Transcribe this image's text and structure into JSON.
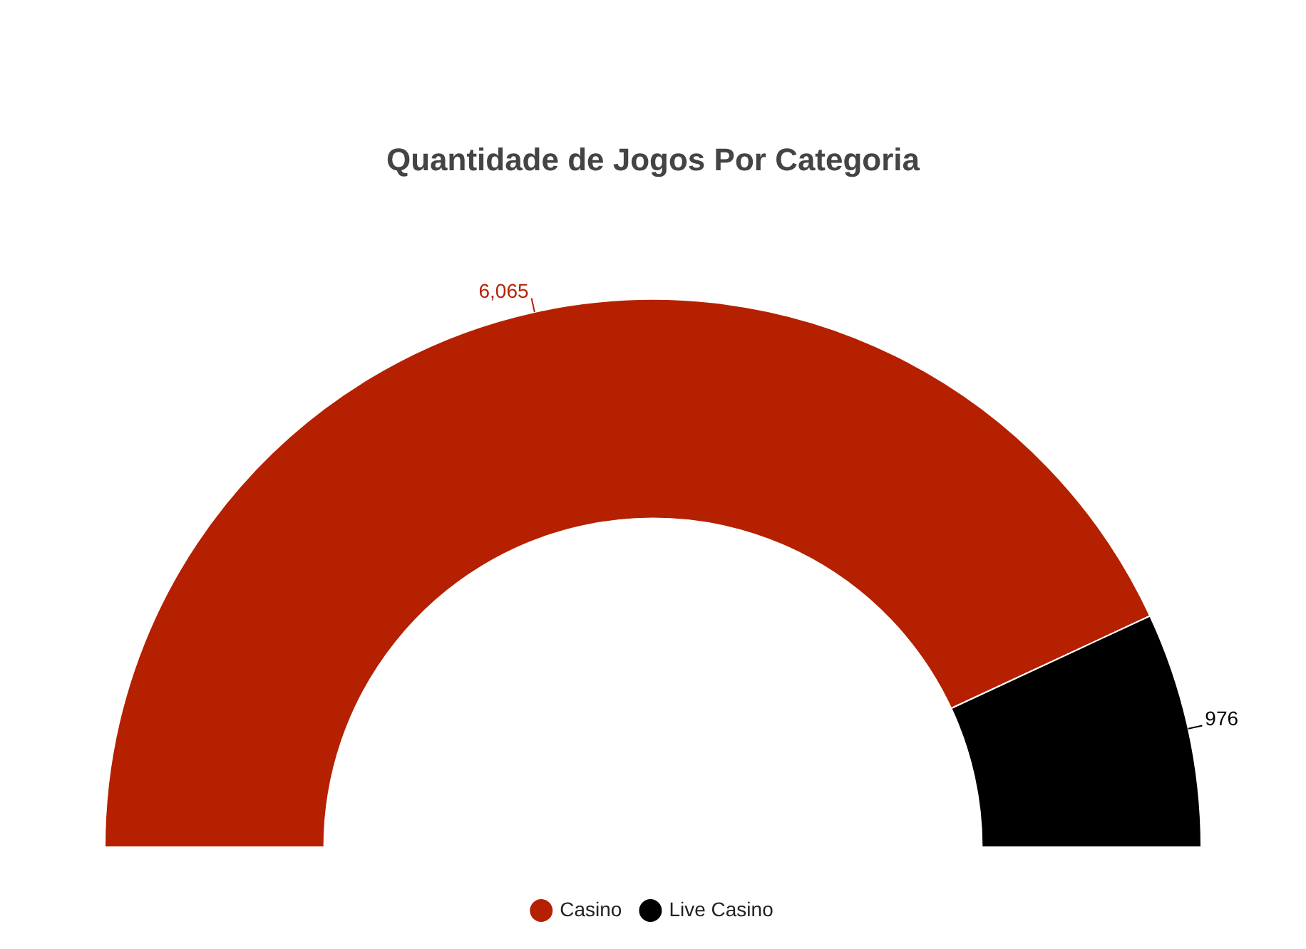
{
  "chart_data": {
    "type": "donut",
    "title": "Quantidade de Jogos Por Categoria",
    "categories": [
      "Casino",
      "Live Casino"
    ],
    "values": [
      6065,
      976
    ],
    "colors": [
      "#b52000",
      "#000000"
    ],
    "value_labels": [
      "6,065",
      "976"
    ],
    "legend": "bottom"
  }
}
